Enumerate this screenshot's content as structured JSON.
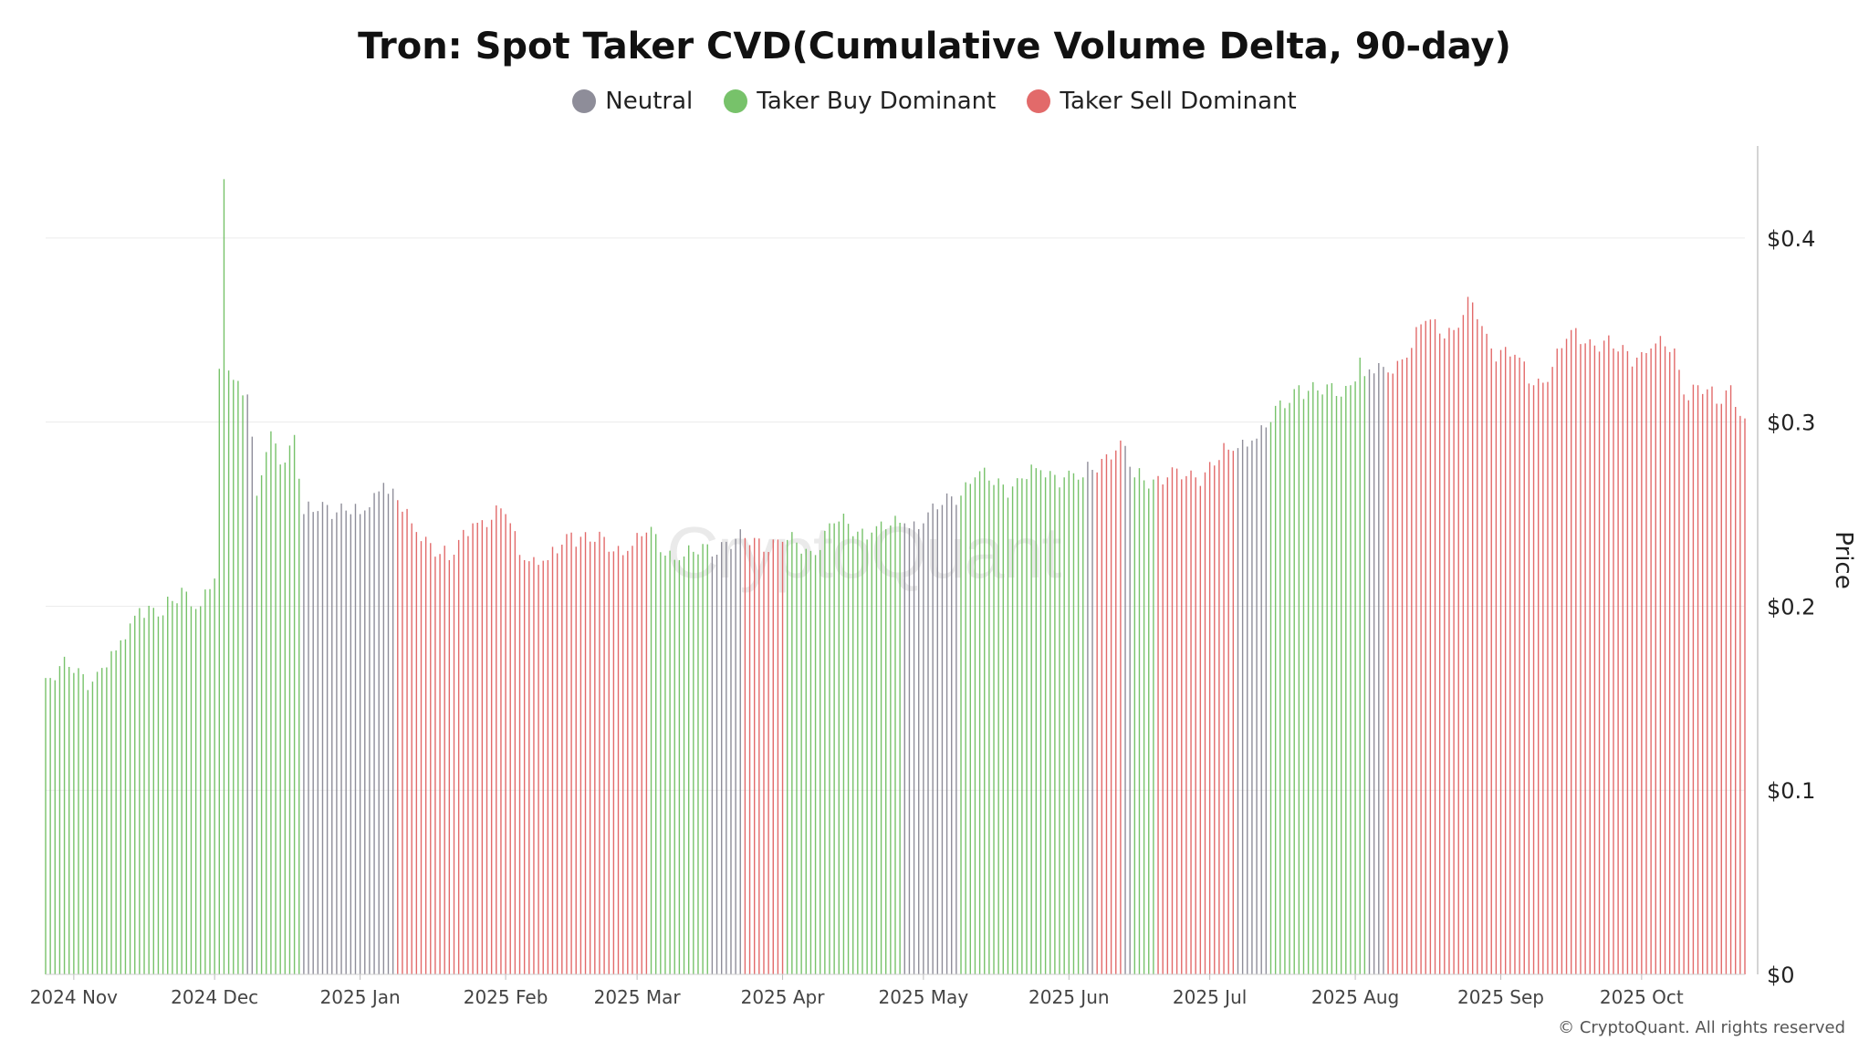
{
  "chart_data": {
    "type": "bar",
    "title": "Tron: Spot Taker CVD(Cumulative Volume Delta, 90-day)",
    "ylabel": "Price",
    "xlabel": "",
    "ylim": [
      0,
      0.45
    ],
    "yticks": [
      "$0",
      "$0.1",
      "$0.2",
      "$0.3",
      "$0.4"
    ],
    "ytick_values": [
      0,
      0.1,
      0.2,
      0.3,
      0.4
    ],
    "xticks": [
      "2024 Nov",
      "2024 Dec",
      "2025 Jan",
      "2025 Feb",
      "2025 Mar",
      "2025 Apr",
      "2025 May",
      "2025 Jun",
      "2025 Jul",
      "2025 Aug",
      "2025 Sep",
      "2025 Oct"
    ],
    "x_start": "2024-10-26",
    "x_end": "2025-10-23",
    "legend": [
      {
        "name": "Neutral",
        "color": "#8e8d99"
      },
      {
        "name": "Taker Buy Dominant",
        "color": "#77c26a"
      },
      {
        "name": "Taker Sell Dominant",
        "color": "#e26a6a"
      }
    ],
    "legend_position": "top-center",
    "grid": true,
    "price_anchors": [
      [
        "2024-10-26",
        0.161
      ],
      [
        "2024-10-31",
        0.167
      ],
      [
        "2024-11-05",
        0.159
      ],
      [
        "2024-11-10",
        0.176
      ],
      [
        "2024-11-15",
        0.199
      ],
      [
        "2024-11-20",
        0.195
      ],
      [
        "2024-11-24",
        0.21
      ],
      [
        "2024-11-28",
        0.2
      ],
      [
        "2024-12-01",
        0.215
      ],
      [
        "2024-12-03",
        0.432
      ],
      [
        "2024-12-04",
        0.328
      ],
      [
        "2024-12-08",
        0.315
      ],
      [
        "2024-12-10",
        0.26
      ],
      [
        "2024-12-13",
        0.295
      ],
      [
        "2024-12-16",
        0.278
      ],
      [
        "2024-12-18",
        0.293
      ],
      [
        "2024-12-20",
        0.25
      ],
      [
        "2024-12-25",
        0.255
      ],
      [
        "2025-01-01",
        0.25
      ],
      [
        "2025-01-06",
        0.267
      ],
      [
        "2025-01-12",
        0.245
      ],
      [
        "2025-01-20",
        0.225
      ],
      [
        "2025-01-25",
        0.245
      ],
      [
        "2025-02-01",
        0.25
      ],
      [
        "2025-02-05",
        0.225
      ],
      [
        "2025-02-10",
        0.225
      ],
      [
        "2025-02-15",
        0.24
      ],
      [
        "2025-02-20",
        0.235
      ],
      [
        "2025-02-27",
        0.23
      ],
      [
        "2025-03-03",
        0.24
      ],
      [
        "2025-03-10",
        0.225
      ],
      [
        "2025-03-20",
        0.235
      ],
      [
        "2025-04-01",
        0.235
      ],
      [
        "2025-04-07",
        0.23
      ],
      [
        "2025-04-12",
        0.245
      ],
      [
        "2025-04-20",
        0.24
      ],
      [
        "2025-04-27",
        0.245
      ],
      [
        "2025-05-01",
        0.245
      ],
      [
        "2025-05-05",
        0.255
      ],
      [
        "2025-05-12",
        0.27
      ],
      [
        "2025-05-20",
        0.265
      ],
      [
        "2025-05-25",
        0.275
      ],
      [
        "2025-05-31",
        0.27
      ],
      [
        "2025-06-04",
        0.27
      ],
      [
        "2025-06-08",
        0.28
      ],
      [
        "2025-06-12",
        0.29
      ],
      [
        "2025-06-15",
        0.27
      ],
      [
        "2025-06-22",
        0.27
      ],
      [
        "2025-06-28",
        0.27
      ],
      [
        "2025-07-05",
        0.285
      ],
      [
        "2025-07-10",
        0.29
      ],
      [
        "2025-07-14",
        0.3
      ],
      [
        "2025-07-20",
        0.32
      ],
      [
        "2025-07-25",
        0.315
      ],
      [
        "2025-07-31",
        0.32
      ],
      [
        "2025-08-02",
        0.335
      ],
      [
        "2025-08-03",
        0.325
      ],
      [
        "2025-08-07",
        0.33
      ],
      [
        "2025-08-12",
        0.335
      ],
      [
        "2025-08-16",
        0.355
      ],
      [
        "2025-08-22",
        0.35
      ],
      [
        "2025-08-26",
        0.365
      ],
      [
        "2025-08-30",
        0.34
      ],
      [
        "2025-09-05",
        0.335
      ],
      [
        "2025-09-08",
        0.32
      ],
      [
        "2025-09-12",
        0.33
      ],
      [
        "2025-09-16",
        0.35
      ],
      [
        "2025-09-20",
        0.345
      ],
      [
        "2025-09-25",
        0.34
      ],
      [
        "2025-09-30",
        0.335
      ],
      [
        "2025-10-03",
        0.34
      ],
      [
        "2025-10-08",
        0.34
      ],
      [
        "2025-10-10",
        0.315
      ],
      [
        "2025-10-13",
        0.32
      ],
      [
        "2025-10-17",
        0.31
      ],
      [
        "2025-10-20",
        0.32
      ],
      [
        "2025-10-23",
        0.302
      ]
    ],
    "dominance_periods": [
      [
        "2024-10-26",
        "Taker Buy Dominant"
      ],
      [
        "2024-12-08",
        "Neutral"
      ],
      [
        "2024-12-10",
        "Taker Buy Dominant"
      ],
      [
        "2024-12-20",
        "Neutral"
      ],
      [
        "2025-01-09",
        "Taker Sell Dominant"
      ],
      [
        "2025-03-04",
        "Taker Buy Dominant"
      ],
      [
        "2025-03-17",
        "Neutral"
      ],
      [
        "2025-03-24",
        "Taker Sell Dominant"
      ],
      [
        "2025-04-02",
        "Taker Buy Dominant"
      ],
      [
        "2025-04-27",
        "Neutral"
      ],
      [
        "2025-05-09",
        "Taker Buy Dominant"
      ],
      [
        "2025-06-05",
        "Neutral"
      ],
      [
        "2025-06-07",
        "Taker Sell Dominant"
      ],
      [
        "2025-06-13",
        "Neutral"
      ],
      [
        "2025-06-15",
        "Taker Buy Dominant"
      ],
      [
        "2025-06-20",
        "Taker Sell Dominant"
      ],
      [
        "2025-07-07",
        "Neutral"
      ],
      [
        "2025-07-14",
        "Taker Buy Dominant"
      ],
      [
        "2025-08-04",
        "Neutral"
      ],
      [
        "2025-08-08",
        "Taker Sell Dominant"
      ]
    ]
  },
  "footer": "© CryptoQuant. All rights reserved",
  "watermark": "CryptoQuant"
}
